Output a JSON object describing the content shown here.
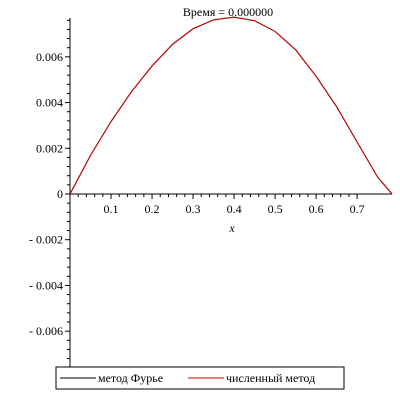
{
  "chart_data": {
    "type": "line",
    "title": "Время = 0.000000",
    "xlabel": "x",
    "ylabel": "",
    "xlim": [
      0,
      0.785
    ],
    "ylim": [
      -0.0077,
      0.0077
    ],
    "x_ticks": [
      "0.1",
      "0.2",
      "0.3",
      "0.4",
      "0.5",
      "0.6",
      "0.7"
    ],
    "x_tick_values": [
      0.1,
      0.2,
      0.3,
      0.4,
      0.5,
      0.6,
      0.7
    ],
    "y_ticks": [
      "0.006",
      "0.004",
      "0.002",
      "0",
      "- 0.002",
      "- 0.004",
      "- 0.006"
    ],
    "y_tick_values": [
      0.006,
      0.004,
      0.002,
      0,
      -0.002,
      -0.004,
      -0.006
    ],
    "grid": false,
    "legend_position": "bottom",
    "series": [
      {
        "name": "метод Фурье",
        "color": "#000000",
        "x": [
          0,
          0.05,
          0.1,
          0.15,
          0.2,
          0.25,
          0.3,
          0.35,
          0.4,
          0.45,
          0.5,
          0.55,
          0.6,
          0.65,
          0.7,
          0.75,
          0.785
        ],
        "y": [
          0,
          0.00169,
          0.00317,
          0.00448,
          0.0056,
          0.00655,
          0.00723,
          0.00762,
          0.00774,
          0.00758,
          0.00711,
          0.00631,
          0.00515,
          0.00382,
          0.00227,
          0.00074,
          0
        ]
      },
      {
        "name": "численный метод",
        "color": "#cc0000",
        "x": [
          0,
          0.05,
          0.1,
          0.15,
          0.2,
          0.25,
          0.3,
          0.35,
          0.4,
          0.45,
          0.5,
          0.55,
          0.6,
          0.65,
          0.7,
          0.75,
          0.785
        ],
        "y": [
          0,
          0.00169,
          0.00317,
          0.00448,
          0.0056,
          0.00655,
          0.00723,
          0.00762,
          0.00774,
          0.00758,
          0.00711,
          0.00631,
          0.00515,
          0.00382,
          0.00227,
          0.00074,
          0
        ]
      }
    ]
  }
}
